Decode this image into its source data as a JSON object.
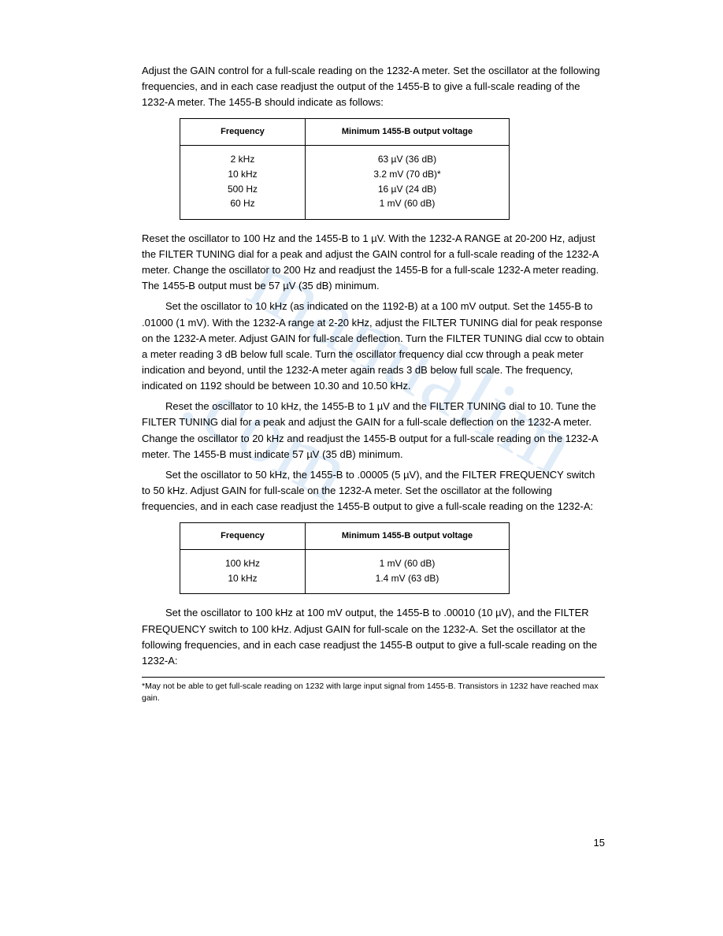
{
  "paragraphs": {
    "p1": "Adjust the GAIN control for a full-scale reading on the 1232-A meter. Set the oscillator at the following frequencies, and in each case readjust the output of the 1455-B to give a full-scale reading of the 1232-A meter. The 1455-B should indicate as follows:",
    "p2": "Reset the oscillator to 100 Hz and the 1455-B to 1 µV. With the 1232-A RANGE at 20-200 Hz, adjust the FILTER TUNING dial for a peak and adjust the GAIN control for a full-scale reading of the 1232-A meter. Change the oscillator to 200 Hz and readjust the 1455-B for a full-scale 1232-A meter reading. The 1455-B output must be 57 µV (35 dB) minimum.",
    "p3": "Set the oscillator to 10 kHz (as indicated on the 1192-B) at a 100 mV output. Set the 1455-B to .01000 (1 mV). With the 1232-A range at 2-20 kHz, adjust the FILTER TUNING dial for peak response on the 1232-A meter. Adjust GAIN for full-scale deflection. Turn the FILTER TUNING dial ccw to obtain a meter reading 3 dB below full scale. Turn the oscillator frequency dial ccw through a peak meter indication and beyond, until the 1232-A meter again reads 3 dB below full scale. The frequency, indicated on 1192 should be between 10.30 and 10.50 kHz.",
    "p4": "Reset the oscillator to 10 kHz, the 1455-B to 1 µV and the FILTER TUNING dial to 10. Tune the FILTER TUNING dial for a peak and adjust the GAIN for a full-scale deflection on the 1232-A meter. Change the oscillator to 20 kHz and readjust the 1455-B output for a full-scale reading on the 1232-A meter. The 1455-B must indicate 57 µV (35 dB) minimum.",
    "p5": "Set the oscillator to 50 kHz, the 1455-B to .00005 (5 µV), and the FILTER FREQUENCY switch to 50 kHz. Adjust GAIN for full-scale on the 1232-A meter. Set the oscillator at the following frequencies, and in each case readjust the 1455-B output to give a full-scale reading on the 1232-A:",
    "p6": "Set the oscillator to 100 kHz at 100 mV output, the 1455-B to .00010 (10 µV), and the FILTER FREQUENCY switch to 100 kHz. Adjust GAIN for full-scale on the 1232-A. Set the oscillator at the following frequencies, and in each case readjust the 1455-B output to give a full-scale reading on the 1232-A:"
  },
  "table1": {
    "header_freq": "Frequency",
    "header_out": "Minimum 1455-B output voltage",
    "rows_freq": "2 kHz\n10 kHz\n500 Hz\n60 Hz",
    "rows_out": "63 µV (36 dB)\n3.2 mV (70 dB)*\n16 µV (24 dB)\n1 mV (60 dB)"
  },
  "table2": {
    "header_freq": "Frequency",
    "header_out": "Minimum 1455-B output voltage",
    "rows_freq": "100 kHz\n10 kHz",
    "rows_out": "1 mV (60 dB)\n1.4 mV (63 dB)"
  },
  "footnote": "*May not be able to get full-scale reading on 1232 with large input signal from 1455-B. Transistors in 1232 have reached max gain.",
  "page_number": "15",
  "watermark_text": "manualim .com"
}
